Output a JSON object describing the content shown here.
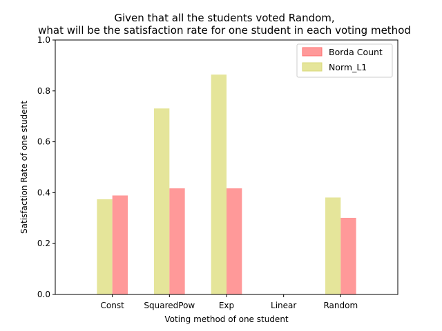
{
  "chart_data": {
    "type": "bar",
    "title_lines": [
      "Given that all the students voted Random,",
      "what will be the satisfaction rate for one student in each voting method"
    ],
    "xlabel": "Voting method of one student",
    "ylabel": "Satisfaction Rate of one student",
    "categories": [
      "Const",
      "SquaredPow",
      "Exp",
      "Linear",
      "Random"
    ],
    "ylim": [
      0,
      1.0
    ],
    "yticks": [
      "0.0",
      "0.2",
      "0.4",
      "0.6",
      "0.8",
      "1.0"
    ],
    "grid": false,
    "legend_position": "top-right",
    "series": [
      {
        "name": "Norm_L1",
        "color": "#e5e59a",
        "values": [
          0.374,
          0.731,
          0.864,
          0.0,
          0.381
        ]
      },
      {
        "name": "Borda Count",
        "color": "#ff9999",
        "values": [
          0.389,
          0.417,
          0.417,
          0.0,
          0.301
        ]
      }
    ],
    "legend_order": [
      "Borda Count",
      "Norm_L1"
    ]
  }
}
